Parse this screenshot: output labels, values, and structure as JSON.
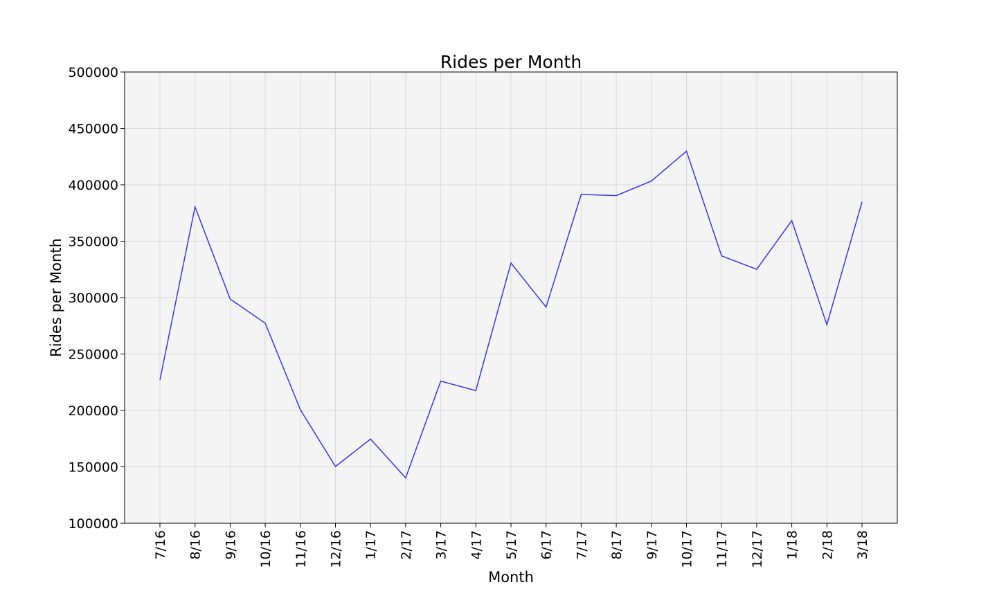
{
  "chart_data": {
    "type": "line",
    "title": "Rides per Month",
    "xlabel": "Month",
    "ylabel": "Rides per Month",
    "ylim": [
      100000,
      500000
    ],
    "yticks": [
      "100000",
      "150000",
      "200000",
      "250000",
      "300000",
      "350000",
      "400000",
      "450000",
      "500000"
    ],
    "grid": true,
    "categories": [
      "7/16",
      "8/16",
      "9/16",
      "10/16",
      "11/16",
      "12/16",
      "1/17",
      "2/17",
      "3/17",
      "4/17",
      "5/17",
      "6/17",
      "7/17",
      "8/17",
      "9/17",
      "10/17",
      "11/17",
      "12/17",
      "1/18",
      "2/18",
      "3/18"
    ],
    "series": [
      {
        "color": "#3535e8",
        "values": [
          227000,
          380500,
          298800,
          277300,
          200700,
          150300,
          174600,
          140200,
          226000,
          217600,
          330700,
          291600,
          391500,
          390400,
          403300,
          429800,
          337000,
          325100,
          368200,
          276000,
          384800
        ]
      }
    ]
  }
}
